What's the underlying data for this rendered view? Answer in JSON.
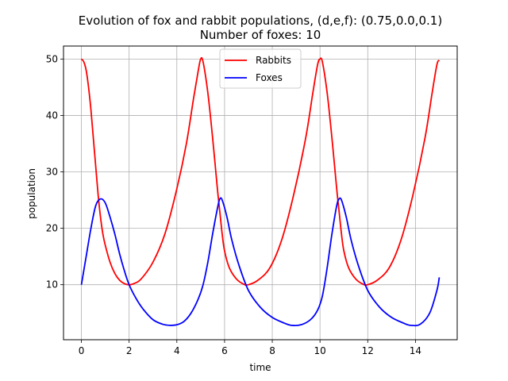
{
  "chart_data": {
    "type": "line",
    "title": "Evolution of fox and rabbit populations, (d,e,f): (0.75,0.0,0.1)",
    "subtitle": "Number of foxes: 10",
    "xlabel": "time",
    "ylabel": "population",
    "xlim": [
      -0.75,
      15.75
    ],
    "ylim": [
      0.25,
      52.3
    ],
    "xticks": [
      0,
      2,
      4,
      6,
      8,
      10,
      12,
      14
    ],
    "yticks": [
      10,
      20,
      30,
      40,
      50
    ],
    "grid": true,
    "legend_position": "top-center",
    "series": [
      {
        "name": "Rabbits",
        "color": "#ff0000",
        "x": [
          0,
          0.1,
          0.2,
          0.3,
          0.4,
          0.5,
          0.6,
          0.7,
          0.8,
          0.9,
          1.0,
          1.2,
          1.4,
          1.6,
          1.8,
          2.0,
          2.2,
          2.5,
          3.0,
          3.5,
          4.0,
          4.4,
          4.7,
          4.9,
          5.0,
          5.1,
          5.3,
          5.5,
          5.7,
          5.8,
          5.9,
          6.0,
          6.2,
          6.5,
          6.8,
          7.0,
          7.4,
          7.9,
          8.4,
          8.9,
          9.4,
          9.7,
          9.9,
          10.0,
          10.1,
          10.3,
          10.5,
          10.7,
          10.8,
          10.9,
          11.0,
          11.2,
          11.5,
          11.8,
          12.0,
          12.4,
          12.9,
          13.4,
          13.9,
          14.4,
          14.7,
          14.9,
          15.0
        ],
        "y": [
          50,
          49.5,
          48,
          45,
          41,
          36,
          31,
          26,
          22,
          19,
          17,
          14,
          12,
          10.8,
          10.2,
          10,
          10.2,
          11,
          14,
          19,
          27,
          35,
          43,
          48,
          50,
          49.5,
          44,
          36,
          27,
          23,
          19,
          16,
          13,
          11,
          10.1,
          10,
          10.8,
          13,
          18,
          26,
          36,
          44,
          49,
          50,
          49.5,
          44,
          36,
          27,
          23,
          19,
          16,
          13,
          11,
          10.1,
          10,
          10.8,
          13,
          18,
          26,
          36,
          44,
          49,
          49.8
        ]
      },
      {
        "name": "Foxes",
        "color": "#0000ff",
        "x": [
          0,
          0.2,
          0.4,
          0.6,
          0.8,
          1.0,
          1.2,
          1.4,
          1.6,
          1.8,
          2.0,
          2.3,
          2.6,
          3.0,
          3.4,
          3.7,
          4.0,
          4.3,
          4.6,
          4.9,
          5.1,
          5.3,
          5.5,
          5.7,
          5.8,
          5.9,
          6.1,
          6.3,
          6.6,
          7.0,
          7.5,
          8.0,
          8.5,
          8.8,
          9.2,
          9.6,
          9.9,
          10.1,
          10.3,
          10.5,
          10.7,
          10.8,
          10.9,
          11.1,
          11.3,
          11.6,
          12.0,
          12.5,
          13.0,
          13.5,
          13.8,
          14.2,
          14.6,
          14.9,
          15.0
        ],
        "y": [
          10,
          15,
          20,
          24,
          25.2,
          24.5,
          22,
          19,
          15.5,
          12.5,
          10,
          7.5,
          5.6,
          3.8,
          3,
          2.8,
          2.9,
          3.5,
          5,
          7.5,
          10,
          14,
          19,
          23.5,
          25.2,
          25,
          22,
          18,
          13.5,
          9,
          6,
          4.2,
          3.2,
          2.8,
          2.9,
          3.8,
          5.5,
          8,
          13,
          19,
          24,
          25.2,
          25,
          22,
          18,
          13.5,
          9,
          6,
          4.2,
          3.2,
          2.8,
          3,
          5,
          9,
          11.3
        ]
      }
    ]
  }
}
